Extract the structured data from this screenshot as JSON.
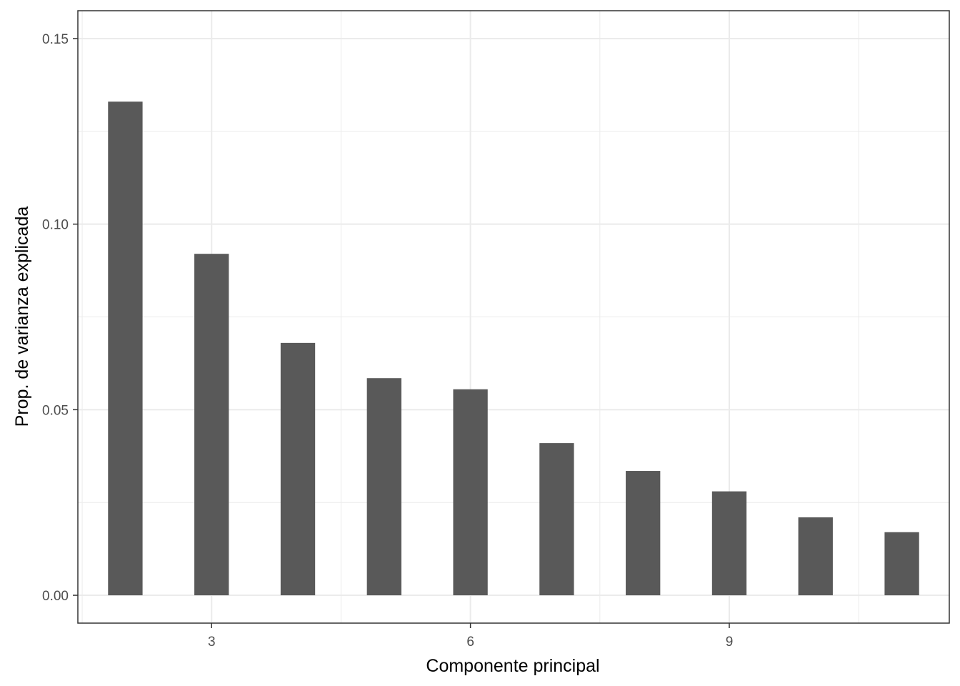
{
  "chart_data": {
    "type": "bar",
    "xlabel": "Componente principal",
    "ylabel": "Prop. de varianza explicada",
    "x": [
      2,
      3,
      4,
      5,
      6,
      7,
      8,
      9,
      10,
      11
    ],
    "values": [
      0.133,
      0.092,
      0.068,
      0.0585,
      0.0555,
      0.041,
      0.0335,
      0.028,
      0.021,
      0.017
    ],
    "xlim": [
      1.45,
      11.55
    ],
    "ylim": [
      -0.0075,
      0.1575
    ],
    "x_ticks": [
      3,
      6,
      9
    ],
    "x_tick_labels": [
      "3",
      "6",
      "9"
    ],
    "y_ticks": [
      0,
      0.05,
      0.1,
      0.15
    ],
    "y_tick_labels": [
      "0.00",
      "0.05",
      "0.10",
      "0.15"
    ],
    "grid": true,
    "bar_color": "#595959",
    "grid_color": "#ebebeb",
    "panel_border_color": "#333333"
  }
}
